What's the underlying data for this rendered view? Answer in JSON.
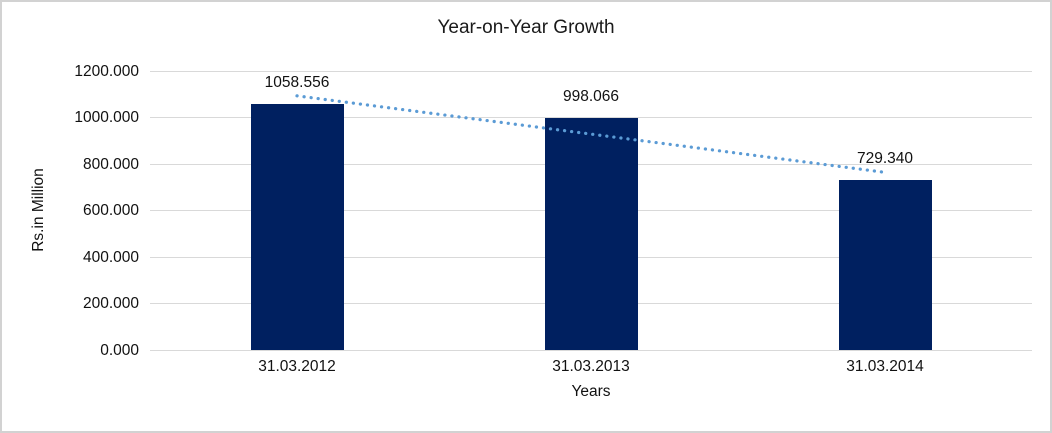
{
  "chart_data": {
    "type": "bar",
    "title": "Year-on-Year Growth",
    "categories": [
      "31.03.2012",
      "31.03.2013",
      "31.03.2014"
    ],
    "values": [
      1058.556,
      998.066,
      729.34
    ],
    "data_labels": [
      "1058.556",
      "998.066",
      "729.340"
    ],
    "xlabel": "Years",
    "ylabel": "Rs.in Million",
    "ylim": [
      0,
      1200
    ],
    "yticks": [
      0,
      200,
      400,
      600,
      800,
      1000,
      1200
    ],
    "ytick_labels": [
      "0.000",
      "200.000",
      "400.000",
      "600.000",
      "800.000",
      "1000.000",
      "1200.000"
    ],
    "grid": true,
    "legend": "none",
    "bar_color": "#002060",
    "gridline_color": "#d9d9d9",
    "trendline": {
      "type": "linear",
      "style": "dotted",
      "color": "#5B9BD5"
    }
  }
}
